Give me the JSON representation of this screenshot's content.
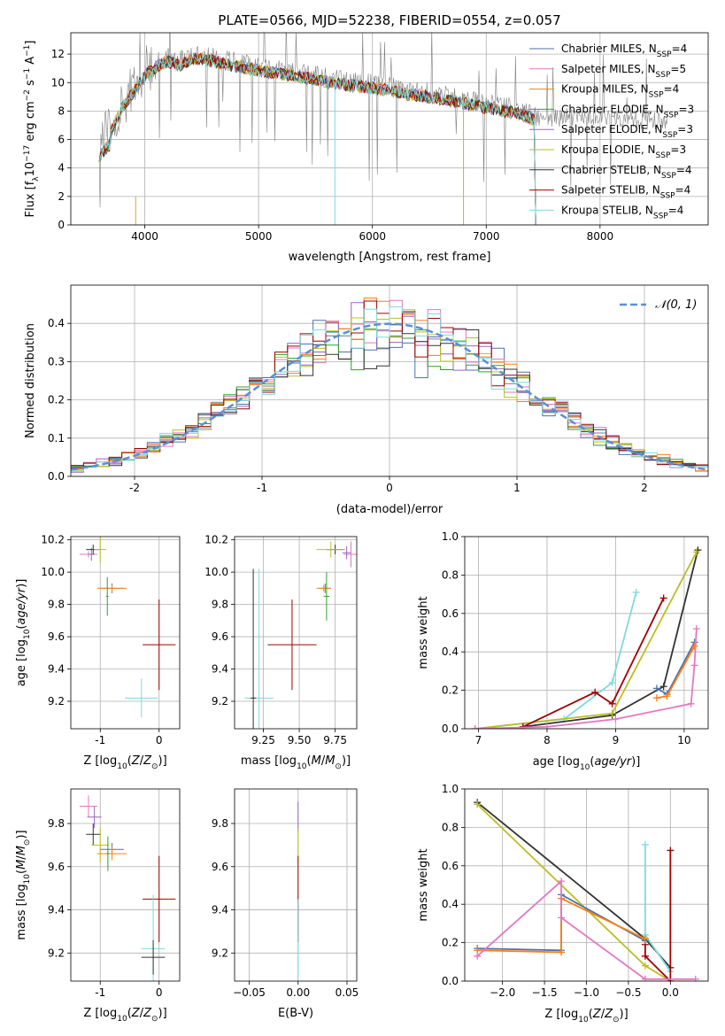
{
  "colors": {
    "Chabrier MILES": "#4c72b0",
    "Salpeter MILES": "#e377c2",
    "Kroupa MILES": "#ff7f0e",
    "Chabrier ELODIE": "#2ca02c",
    "Salpeter ELODIE": "#9467bd",
    "Kroupa ELODIE": "#bcbd22",
    "Chabrier STELIB": "#333333",
    "Salpeter STELIB": "#a00000",
    "Kroupa STELIB": "#7fd8e0",
    "data": "#808080",
    "normal": "#5b8fd6"
  },
  "chart_data": [
    {
      "type": "line",
      "title": "PLATE=0566, MJD=52238, FIBERID=0554, z=0.057",
      "xlabel": "wavelength [Angstrom, rest frame]",
      "ylabel": "Flux [f_λ10^-17 erg cm^-2 s^-1 A^-1]",
      "xlim": [
        3350,
        8950
      ],
      "ylim": [
        0,
        13.5
      ],
      "xticks": [
        4000,
        5000,
        6000,
        7000,
        8000
      ],
      "yticks": [
        0,
        2,
        4,
        6,
        8,
        10,
        12
      ],
      "continuum": {
        "x": [
          3600,
          3700,
          3800,
          3900,
          4000,
          4100,
          4200,
          4300,
          4400,
          4500,
          4700,
          4900,
          5100,
          5300,
          5500,
          5700,
          5900,
          6100,
          6300,
          6500,
          6700,
          6900,
          7100,
          7300,
          7420
        ],
        "y": [
          6.0,
          6.8,
          8.5,
          9.6,
          10.8,
          11.4,
          11.8,
          11.5,
          11.9,
          12.0,
          11.6,
          11.3,
          11.0,
          10.8,
          10.5,
          10.2,
          10.0,
          9.8,
          9.5,
          9.3,
          9.0,
          8.7,
          8.4,
          8.1,
          7.7
        ]
      },
      "data_range": [
        3600,
        8600
      ],
      "model_range": [
        3600,
        7420
      ],
      "series": [
        {
          "name": "Chabrier MILES, N_SSP=4",
          "N": "4"
        },
        {
          "name": "Salpeter MILES, N_SSP=5",
          "N": "5"
        },
        {
          "name": "Kroupa MILES, N_SSP=4",
          "N": "4"
        },
        {
          "name": "Chabrier ELODIE, N_SSP=3",
          "N": "3"
        },
        {
          "name": "Salpeter ELODIE, N_SSP=3",
          "N": "3"
        },
        {
          "name": "Kroupa ELODIE, N_SSP=3",
          "N": "3"
        },
        {
          "name": "Chabrier STELIB, N_SSP=4",
          "N": "4"
        },
        {
          "name": "Salpeter STELIB, N_SSP=4",
          "N": "4"
        },
        {
          "name": "Kroupa STELIB, N_SSP=4",
          "N": "4"
        }
      ],
      "legend": "right"
    },
    {
      "type": "line",
      "xlabel": "(data-model)/error",
      "ylabel": "Normed distribution",
      "xlim": [
        -2.5,
        2.5
      ],
      "ylim": [
        0,
        0.5
      ],
      "xticks": [
        -2,
        -1,
        0,
        1,
        2
      ],
      "yticks": [
        0.0,
        0.1,
        0.2,
        0.3,
        0.4
      ],
      "normal_label": "𝒩(0, 1)",
      "bin_width": 0.1,
      "legend": "top-right"
    },
    {
      "type": "scatter",
      "xlabel": "Z [log10(Z/Z⊙)]",
      "ylabel": "age  [log10(age/yr)]",
      "xlim": [
        -1.5,
        0.35
      ],
      "ylim": [
        9.03,
        10.22
      ],
      "xticks": [
        -1,
        0
      ],
      "yticks": [
        9.2,
        9.4,
        9.6,
        9.8,
        10.0,
        10.2
      ],
      "points": [
        {
          "s": "Salpeter MILES",
          "x": -1.2,
          "y": 10.11,
          "xe": 0.15,
          "ye": 0.02
        },
        {
          "s": "Salpeter ELODIE",
          "x": -1.15,
          "y": 10.11,
          "xe": 0.05,
          "ye": 0.04
        },
        {
          "s": "Chabrier STELIB",
          "x": -1.12,
          "y": 10.14,
          "xe": 0.12,
          "ye": 0.03
        },
        {
          "s": "Kroupa ELODIE",
          "x": -1.0,
          "y": 10.14,
          "xe": 0.1,
          "ye": 0.08
        },
        {
          "s": "Chabrier MILES",
          "x": -0.8,
          "y": 9.9,
          "xe": 0.2,
          "ye": 0.03
        },
        {
          "s": "Kroupa MILES",
          "x": -0.8,
          "y": 9.9,
          "xe": 0.25,
          "ye": 0.02
        },
        {
          "s": "Salpeter STELIB",
          "x": 0.0,
          "y": 9.55,
          "xe": 0.28,
          "ye": 0.28
        },
        {
          "s": "Kroupa STELIB",
          "x": -0.3,
          "y": 9.22,
          "xe": 0.28,
          "ye": 0.12
        },
        {
          "s": "Chabrier ELODIE",
          "x": -0.88,
          "y": 9.85,
          "xe": 0.02,
          "ye": 0.12
        }
      ]
    },
    {
      "type": "scatter",
      "xlabel": "mass [log10(M/M⊙)]",
      "ylabel": "",
      "xlim": [
        9.05,
        9.9
      ],
      "ylim": [
        9.03,
        10.22
      ],
      "xticks": [
        9.25,
        9.5,
        9.75
      ],
      "xticklabels": [
        "9.25",
        "9.50",
        "9.75"
      ],
      "yticks": [
        9.2,
        9.4,
        9.6,
        9.8,
        10.0,
        10.2
      ],
      "points": [
        {
          "s": "Salpeter MILES",
          "x": 9.86,
          "y": 10.11,
          "xe": 0.05,
          "ye": 0.08
        },
        {
          "s": "Salpeter ELODIE",
          "x": 9.83,
          "y": 10.12,
          "xe": 0.03,
          "ye": 0.04
        },
        {
          "s": "Chabrier STELIB",
          "x": 9.75,
          "y": 10.14,
          "xe": 0.06,
          "ye": 0.03
        },
        {
          "s": "Kroupa ELODIE",
          "x": 9.72,
          "y": 10.14,
          "xe": 0.1,
          "ye": 0.05
        },
        {
          "s": "Chabrier MILES",
          "x": 9.68,
          "y": 9.9,
          "xe": 0.04,
          "ye": 0.03
        },
        {
          "s": "Kroupa MILES",
          "x": 9.67,
          "y": 9.9,
          "xe": 0.05,
          "ye": 0.02
        },
        {
          "s": "Chabrier ELODIE",
          "x": 9.69,
          "y": 9.85,
          "xe": 0.02,
          "ye": 0.15
        },
        {
          "s": "Salpeter STELIB",
          "x": 9.45,
          "y": 9.55,
          "xe": 0.17,
          "ye": 0.28
        },
        {
          "s": "Kroupa STELIB",
          "x": 9.22,
          "y": 9.22,
          "xe": 0.1,
          "ye": 0.8
        },
        {
          "s": "Chabrier STELIB",
          "x": 9.18,
          "y": 9.22,
          "xe": 0.02,
          "ye": 0.8
        }
      ]
    },
    {
      "type": "line",
      "xlabel": "age  [log10(age/yr)]",
      "ylabel": "mass weight",
      "xlim": [
        6.8,
        10.35
      ],
      "ylim": [
        0,
        1.0
      ],
      "xticks": [
        7,
        8,
        9,
        10
      ],
      "yticks": [
        0.0,
        0.2,
        0.4,
        0.6,
        0.8,
        1.0
      ],
      "series": [
        {
          "s": "Kroupa STELIB",
          "x": [
            6.95,
            8.25,
            8.95,
            9.3
          ],
          "y": [
            0.0,
            0.05,
            0.24,
            0.71
          ]
        },
        {
          "s": "Chabrier STELIB",
          "x": [
            7.65,
            8.95,
            9.7,
            10.2
          ],
          "y": [
            0.01,
            0.07,
            0.22,
            0.93
          ]
        },
        {
          "s": "Kroupa ELODIE",
          "x": [
            6.95,
            8.95,
            10.18
          ],
          "y": [
            0.0,
            0.08,
            0.92
          ]
        },
        {
          "s": "Salpeter STELIB",
          "x": [
            7.65,
            8.7,
            8.95,
            9.7
          ],
          "y": [
            0.01,
            0.19,
            0.13,
            0.68
          ]
        },
        {
          "s": "Chabrier MILES",
          "x": [
            9.6,
            9.75,
            10.15
          ],
          "y": [
            0.21,
            0.18,
            0.45
          ]
        },
        {
          "s": "Kroupa MILES",
          "x": [
            9.6,
            9.75,
            10.15
          ],
          "y": [
            0.16,
            0.17,
            0.43
          ]
        },
        {
          "s": "Salpeter MILES",
          "x": [
            6.95,
            8.0,
            9.0,
            10.1,
            10.15,
            10.18
          ],
          "y": [
            0.0,
            0.01,
            0.05,
            0.13,
            0.33,
            0.52
          ]
        }
      ]
    },
    {
      "type": "scatter",
      "xlabel": "Z [log10(Z/Z⊙)]",
      "ylabel": "mass [log10(M/M⊙)]",
      "xlim": [
        -1.5,
        0.35
      ],
      "ylim": [
        9.07,
        9.96
      ],
      "xticks": [
        -1,
        0
      ],
      "yticks": [
        9.2,
        9.4,
        9.6,
        9.8
      ],
      "points": [
        {
          "s": "Salpeter MILES",
          "x": -1.2,
          "y": 9.88,
          "xe": 0.15,
          "ye": 0.05
        },
        {
          "s": "Salpeter ELODIE",
          "x": -1.1,
          "y": 9.83,
          "xe": 0.12,
          "ye": 0.05
        },
        {
          "s": "Chabrier STELIB",
          "x": -1.12,
          "y": 9.75,
          "xe": 0.12,
          "ye": 0.05
        },
        {
          "s": "Kroupa ELODIE",
          "x": -1.0,
          "y": 9.7,
          "xe": 0.15,
          "ye": 0.08
        },
        {
          "s": "Chabrier MILES",
          "x": -0.8,
          "y": 9.68,
          "xe": 0.2,
          "ye": 0.03
        },
        {
          "s": "Kroupa MILES",
          "x": -0.8,
          "y": 9.66,
          "xe": 0.25,
          "ye": 0.03
        },
        {
          "s": "Chabrier ELODIE",
          "x": -0.87,
          "y": 9.66,
          "xe": 0.02,
          "ye": 0.08
        },
        {
          "s": "Salpeter STELIB",
          "x": 0.0,
          "y": 9.45,
          "xe": 0.28,
          "ye": 0.2
        },
        {
          "s": "Kroupa STELIB",
          "x": -0.1,
          "y": 9.22,
          "xe": 0.2,
          "ye": 0.25
        },
        {
          "s": "Chabrier STELIB",
          "x": -0.1,
          "y": 9.18,
          "xe": 0.2,
          "ye": 0.08
        }
      ]
    },
    {
      "type": "scatter",
      "xlabel": "E(B-V)",
      "ylabel": "",
      "xlim": [
        -0.065,
        0.06
      ],
      "ylim": [
        9.07,
        9.96
      ],
      "xticks": [
        -0.05,
        0.0,
        0.05
      ],
      "xticklabels": [
        "−0.05",
        "0.00",
        "0.05"
      ],
      "yticks": [
        9.2,
        9.4,
        9.6,
        9.8
      ],
      "points": [
        {
          "s": "Salpeter ELODIE",
          "x": 0.0,
          "y": 9.83,
          "xe": 0.0,
          "ye": 0.07
        },
        {
          "s": "Kroupa ELODIE",
          "x": 0.0,
          "y": 9.7,
          "xe": 0.0,
          "ye": 0.08
        },
        {
          "s": "Salpeter STELIB",
          "x": 0.0,
          "y": 9.45,
          "xe": 0.0,
          "ye": 0.2
        },
        {
          "s": "Kroupa STELIB",
          "x": 0.0,
          "y": 9.2,
          "xe": 0.0,
          "ye": 0.25
        }
      ]
    },
    {
      "type": "line",
      "xlabel": "Z [log10(Z/Z⊙)]",
      "ylabel": "mass weight",
      "xlim": [
        -2.45,
        0.45
      ],
      "ylim": [
        0,
        1.0
      ],
      "xticks": [
        -2.0,
        -1.5,
        -1.0,
        -0.5,
        0.0
      ],
      "xticklabels": [
        "−2.0",
        "−1.5",
        "−1.0",
        "−0.5",
        "0.0"
      ],
      "yticks": [
        0.0,
        0.2,
        0.4,
        0.6,
        0.8,
        1.0
      ],
      "series": [
        {
          "s": "Chabrier STELIB",
          "x": [
            -2.3,
            -0.3,
            0.0
          ],
          "y": [
            0.93,
            0.22,
            0.07
          ]
        },
        {
          "s": "Kroupa ELODIE",
          "x": [
            -2.3,
            -0.3,
            0.0
          ],
          "y": [
            0.92,
            0.08,
            0.0
          ]
        },
        {
          "s": "Kroupa STELIB",
          "x": [
            -0.3,
            -0.3,
            0.0
          ],
          "y": [
            0.71,
            0.24,
            0.05
          ]
        },
        {
          "s": "Salpeter STELIB",
          "x": [
            0.0,
            0.0,
            -0.3,
            -0.3
          ],
          "y": [
            0.68,
            0.0,
            0.13,
            0.19
          ]
        },
        {
          "s": "Chabrier MILES",
          "x": [
            -2.3,
            -1.3,
            -1.3,
            -0.3
          ],
          "y": [
            0.17,
            0.16,
            0.45,
            0.21
          ]
        },
        {
          "s": "Kroupa MILES",
          "x": [
            -2.3,
            -1.3,
            -1.3,
            -0.3
          ],
          "y": [
            0.16,
            0.15,
            0.43,
            0.22
          ]
        },
        {
          "s": "Salpeter MILES",
          "x": [
            -2.3,
            -1.3,
            -1.3,
            -0.3,
            0.3
          ],
          "y": [
            0.13,
            0.52,
            0.33,
            0.01,
            0.01
          ]
        }
      ]
    }
  ]
}
